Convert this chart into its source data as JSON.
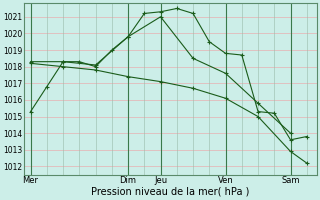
{
  "background_color": "#cceee8",
  "grid_color_h": "#e8b0b0",
  "grid_color_v": "#99bbaa",
  "line_color": "#1a5c1a",
  "marker": "+",
  "marker_size": 3.5,
  "linewidth": 0.8,
  "xlabel": "Pression niveau de la mer( hPa )",
  "xlabel_fontsize": 7,
  "ytick_fontsize": 5.5,
  "xtick_fontsize": 6,
  "ytick_labels": [
    1012,
    1013,
    1014,
    1015,
    1016,
    1017,
    1018,
    1019,
    1020,
    1021
  ],
  "ylim": [
    1011.5,
    1021.8
  ],
  "xtick_labels": [
    "Mer",
    "Dim",
    "Jeu",
    "Ven",
    "Sam"
  ],
  "xtick_positions": [
    0,
    30,
    40,
    60,
    80
  ],
  "xlim": [
    -2,
    88
  ],
  "series1_x": [
    0,
    5,
    10,
    15,
    20,
    25,
    30,
    35,
    40,
    45,
    50,
    55,
    60,
    65,
    70,
    75,
    80,
    85
  ],
  "series1_y": [
    1015.3,
    1016.8,
    1018.3,
    1018.3,
    1018.0,
    1019.0,
    1019.8,
    1021.2,
    1021.3,
    1021.5,
    1021.2,
    1019.5,
    1018.8,
    1018.7,
    1015.3,
    1015.2,
    1013.6,
    1013.8
  ],
  "series2_x": [
    0,
    10,
    20,
    30,
    40,
    50,
    60,
    70,
    80
  ],
  "series2_y": [
    1018.3,
    1018.3,
    1018.1,
    1019.8,
    1021.0,
    1018.5,
    1017.6,
    1015.8,
    1014.0
  ],
  "series3_x": [
    0,
    10,
    20,
    30,
    40,
    50,
    60,
    70,
    80,
    85
  ],
  "series3_y": [
    1018.2,
    1018.0,
    1017.8,
    1017.4,
    1017.1,
    1016.7,
    1016.1,
    1015.0,
    1012.9,
    1012.2
  ],
  "vline_positions": [
    0,
    30,
    40,
    60,
    80
  ],
  "vline_color": "#3a7a4a",
  "spine_color": "#5a8a6a"
}
